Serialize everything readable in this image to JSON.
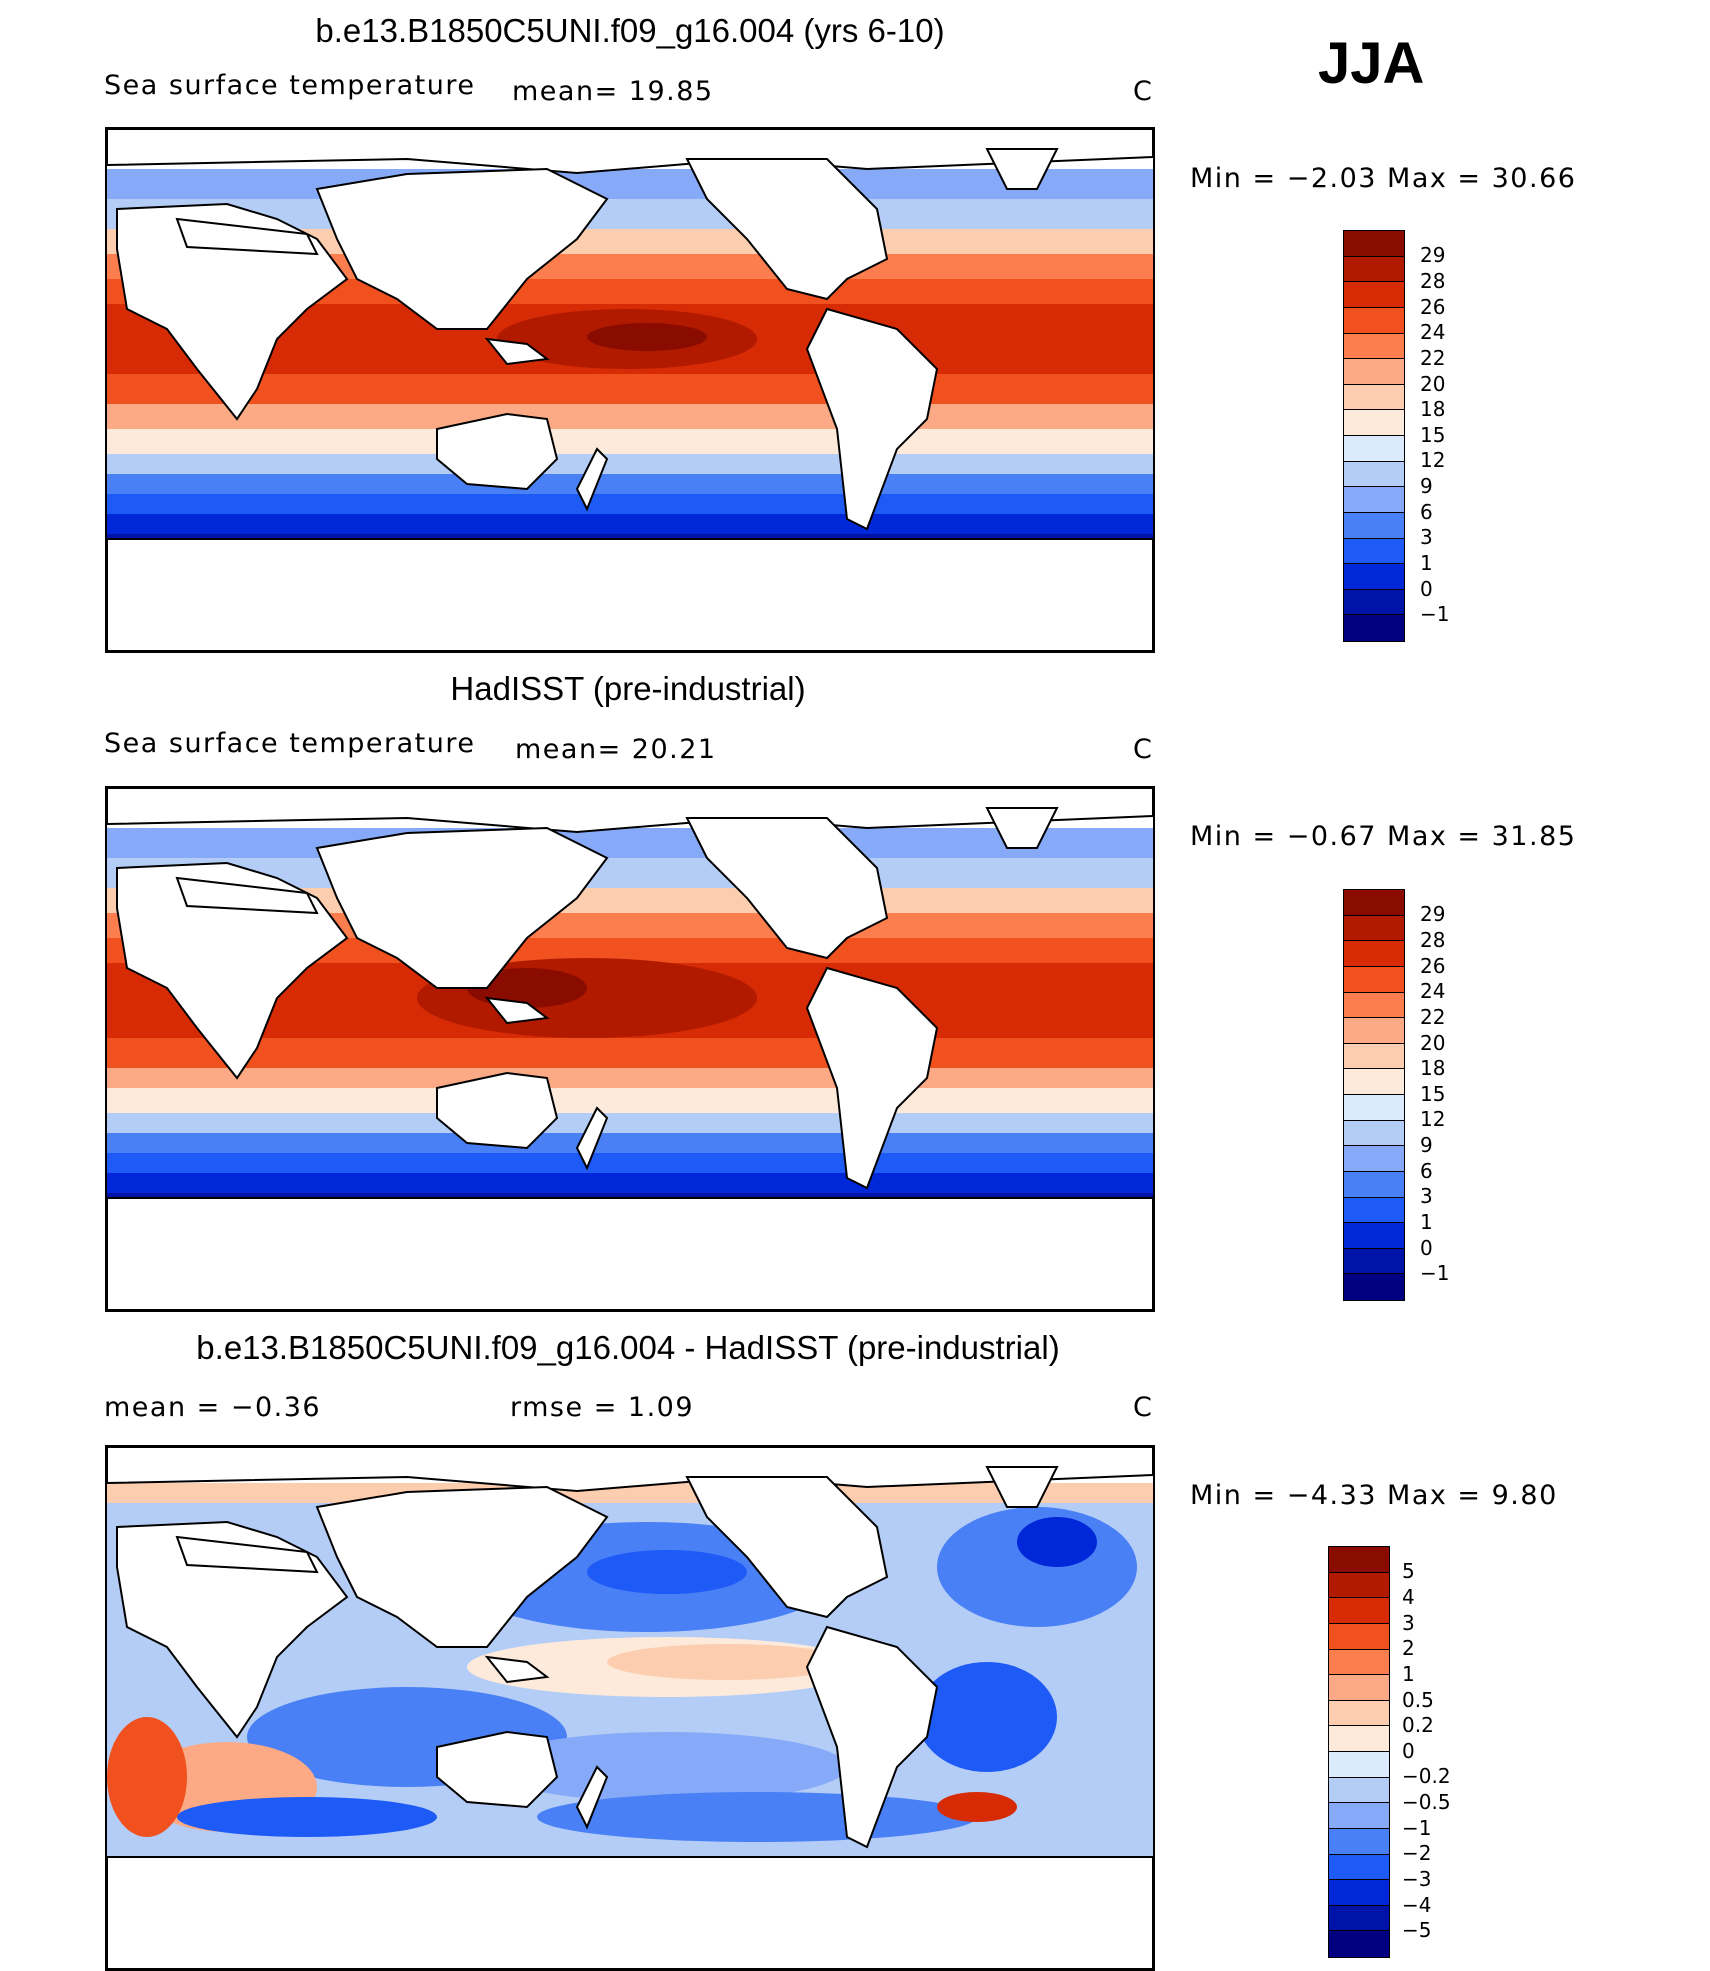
{
  "season": "JJA",
  "panels": [
    {
      "title": "b.e13.B1850C5UNI.f09_g16.004 (yrs 6-10)",
      "field_label": "Sea surface temperature",
      "stat1": "mean=   19.85",
      "stat2": "",
      "units": "C",
      "minmax": "Min =   −2.03 Max =   30.66",
      "colorbar": {
        "colors": [
          "#000080",
          "#0013A8",
          "#0028D8",
          "#1E5AF5",
          "#4A80F5",
          "#86AAF7",
          "#B4CDF7",
          "#DCEAFD",
          "#FDEADB",
          "#FCCDAE",
          "#FCA985",
          "#FC7E4E",
          "#F0511F",
          "#D62B05",
          "#B21A00",
          "#8A0C00"
        ],
        "labels": [
          "29",
          "28",
          "26",
          "24",
          "22",
          "20",
          "18",
          "15",
          "12",
          "9",
          "6",
          "3",
          "1",
          "0",
          "−1"
        ]
      }
    },
    {
      "title": "HadISST (pre-industrial)",
      "field_label": "Sea surface temperature",
      "stat1": "mean=   20.21",
      "stat2": "",
      "units": "C",
      "minmax": "Min =   −0.67 Max =   31.85",
      "colorbar": {
        "colors": [
          "#000080",
          "#0013A8",
          "#0028D8",
          "#1E5AF5",
          "#4A80F5",
          "#86AAF7",
          "#B4CDF7",
          "#DCEAFD",
          "#FDEADB",
          "#FCCDAE",
          "#FCA985",
          "#FC7E4E",
          "#F0511F",
          "#D62B05",
          "#B21A00",
          "#8A0C00"
        ],
        "labels": [
          "29",
          "28",
          "26",
          "24",
          "22",
          "20",
          "18",
          "15",
          "12",
          "9",
          "6",
          "3",
          "1",
          "0",
          "−1"
        ]
      }
    },
    {
      "title": "b.e13.B1850C5UNI.f09_g16.004 - HadISST (pre-industrial)",
      "field_label": "",
      "stat1": "mean =   −0.36",
      "stat2": "rmse =    1.09",
      "units": "C",
      "minmax": "Min =   −4.33 Max =    9.80",
      "colorbar": {
        "colors": [
          "#000080",
          "#0013A8",
          "#0028D8",
          "#1E5AF5",
          "#4A80F5",
          "#86AAF7",
          "#B4CDF7",
          "#DCEAFD",
          "#FDEADB",
          "#FCCDAE",
          "#FCA985",
          "#FC7E4E",
          "#F0511F",
          "#D62B05",
          "#B21A00",
          "#8A0C00"
        ],
        "labels": [
          "5",
          "4",
          "3",
          "2",
          "1",
          "0.5",
          "0.2",
          "0",
          "−0.2",
          "−0.5",
          "−1",
          "−2",
          "−3",
          "−4",
          "−5"
        ]
      }
    }
  ]
}
